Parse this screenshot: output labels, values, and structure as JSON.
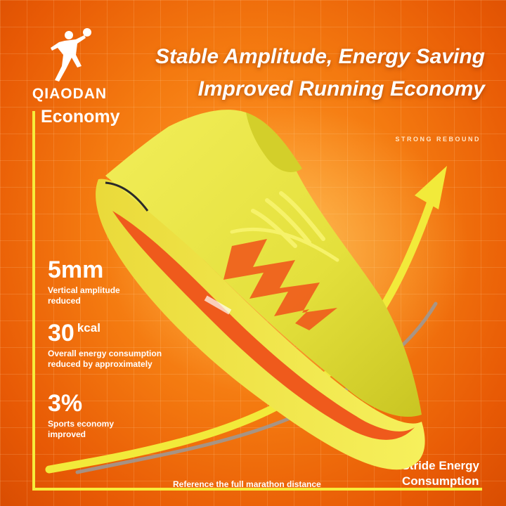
{
  "brand": {
    "name": "QIAODAN"
  },
  "headline": {
    "line1": "Stable Amplitude, Energy Saving",
    "line2": "Improved Running Economy"
  },
  "tagline": "STRONG REBOUND",
  "axes": {
    "y_label": "Economy",
    "x_label_line1": "Stride Energy",
    "x_label_line2": "Consumption"
  },
  "stats": [
    {
      "value": "5mm",
      "unit": "",
      "desc_line1": "Vertical amplitude",
      "desc_line2": "reduced"
    },
    {
      "value": "30",
      "unit": "kcal",
      "desc_line1": "Overall energy consumption",
      "desc_line2": "reduced by approximately"
    },
    {
      "value": "3%",
      "unit": "",
      "desc_line1": "Sports economy",
      "desc_line2": "improved"
    }
  ],
  "reference_note": "Reference the full marathon distance",
  "colors": {
    "background": "#f47a10",
    "accent_yellow": "#f7ec3a",
    "shoe_yellow": "#e9e64a",
    "shoe_red": "#ef5a1c",
    "gray_curve": "#9a9a9a"
  }
}
